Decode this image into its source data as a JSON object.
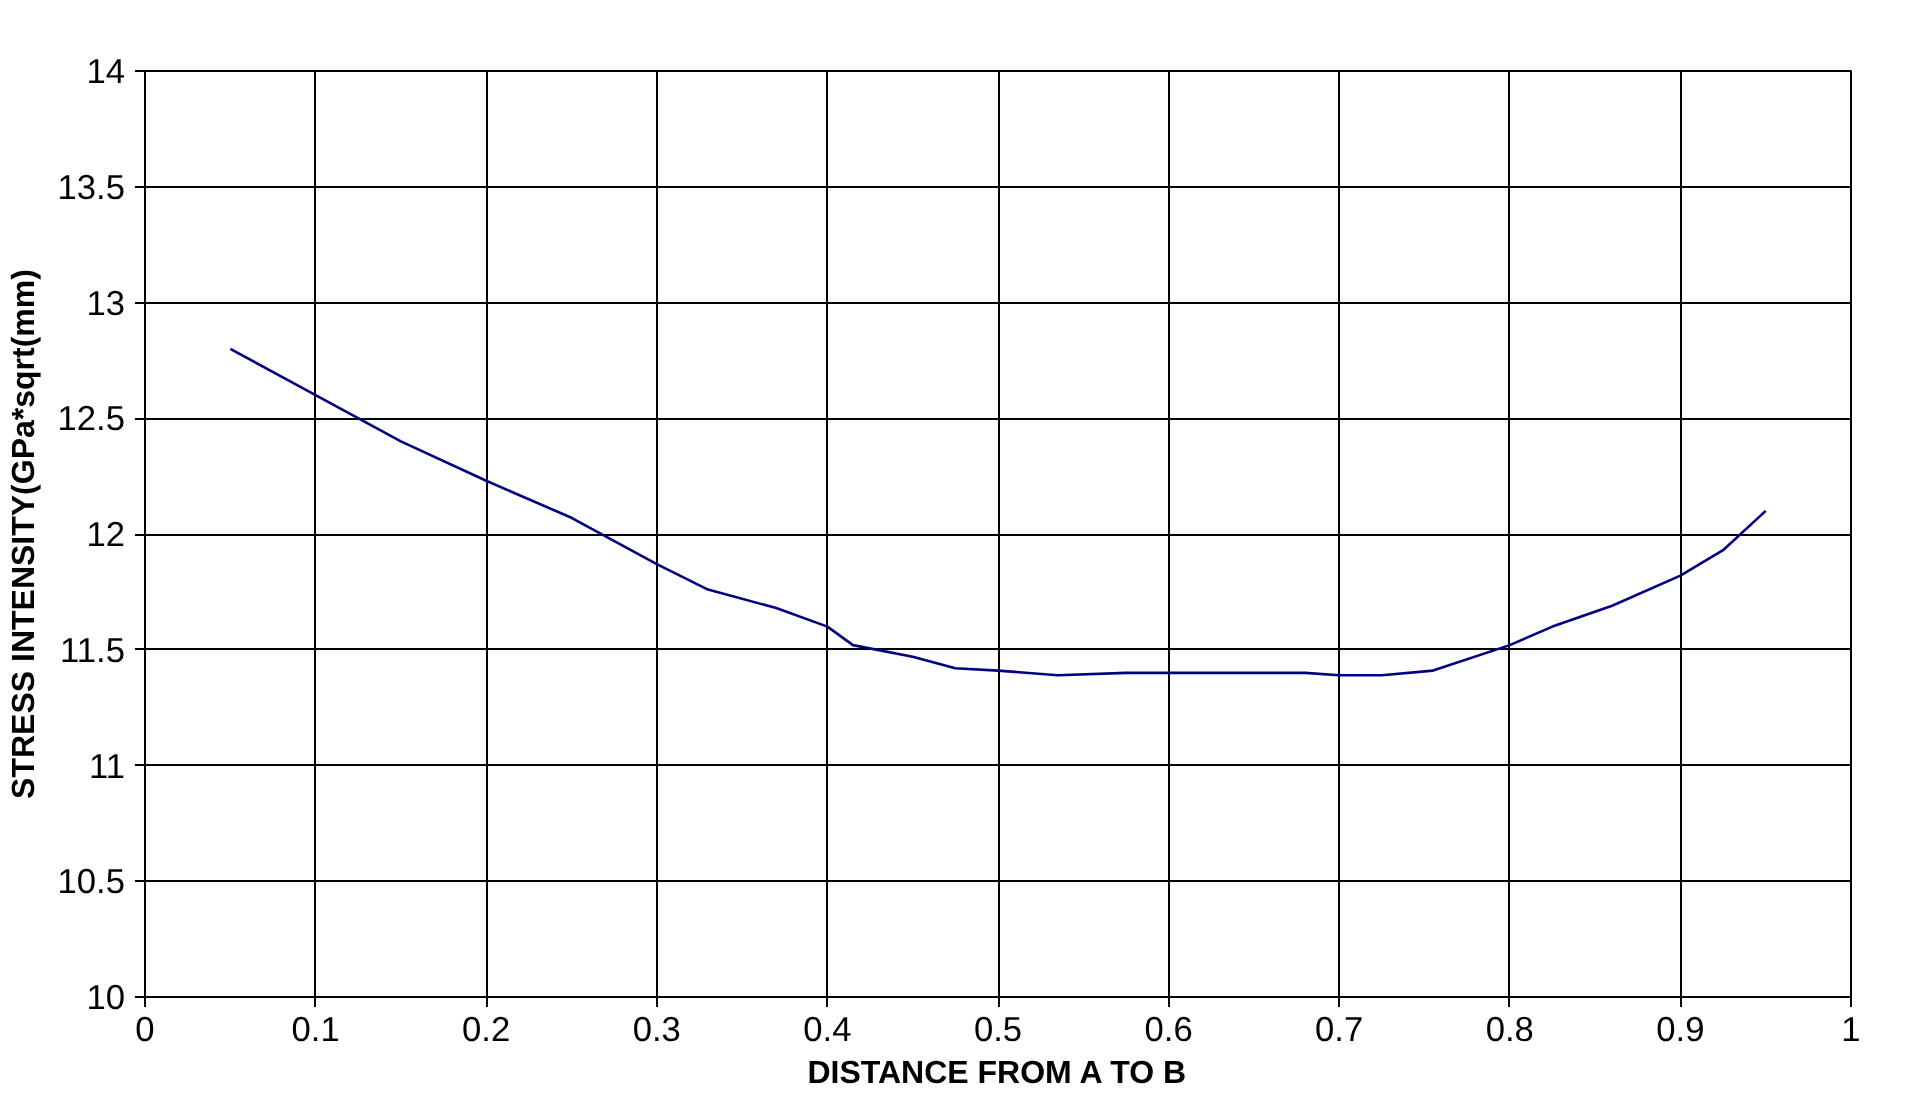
{
  "chart_data": {
    "type": "line",
    "xlabel": "DISTANCE FROM A TO B",
    "ylabel": "STRESS INTENSITY(GPa*sqrt(mm)",
    "xlim": [
      0,
      1
    ],
    "ylim": [
      10,
      14
    ],
    "xticks": [
      0,
      0.1,
      0.2,
      0.3,
      0.4,
      0.5,
      0.6,
      0.7,
      0.8,
      0.9,
      1
    ],
    "yticks": [
      10,
      10.5,
      11,
      11.5,
      12,
      12.5,
      13,
      13.5,
      14
    ],
    "grid": true,
    "marker": "none",
    "line_style": "solid",
    "x": [
      0.05,
      0.1,
      0.15,
      0.2,
      0.25,
      0.3,
      0.33,
      0.37,
      0.4,
      0.415,
      0.45,
      0.475,
      0.5,
      0.535,
      0.575,
      0.65,
      0.68,
      0.7,
      0.725,
      0.755,
      0.8,
      0.825,
      0.86,
      0.9,
      0.925,
      0.95
    ],
    "series": [
      {
        "color": "#000080",
        "values": [
          12.8,
          12.6,
          12.4,
          12.23,
          12.07,
          11.87,
          11.76,
          11.68,
          11.6,
          11.52,
          11.47,
          11.42,
          11.41,
          11.39,
          11.4,
          11.4,
          11.4,
          11.39,
          11.39,
          11.41,
          11.52,
          11.6,
          11.69,
          11.82,
          11.93,
          12.1
        ]
      }
    ]
  }
}
